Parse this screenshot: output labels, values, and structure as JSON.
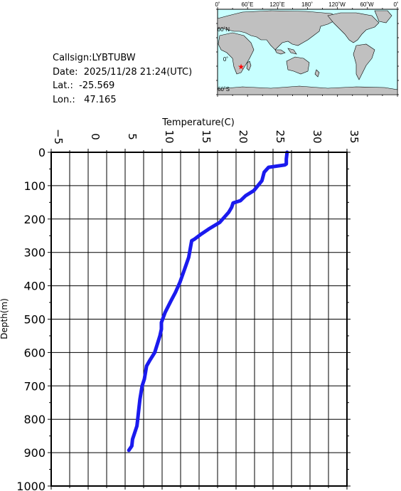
{
  "info": {
    "callsign": "Callsign:LYBTUBW",
    "date": "Date:  2025/11/28 21:24(UTC)",
    "lat": "Lat.:  -25.569",
    "lon": "Lon.:   47.165"
  },
  "map": {
    "lon_labels": [
      "0˚",
      "60˚E",
      "120˚E",
      "180˚",
      "120˚W",
      "60˚W",
      "0˚"
    ],
    "lat_labels": [
      "60˚N",
      "0˚",
      "60˚S"
    ],
    "ocean_color": "#c8ffff",
    "land_color": "#c0c0c0",
    "marker_color": "#ff0000",
    "marker": {
      "lon": 47.165,
      "lat": -25.569
    }
  },
  "chart_data": {
    "type": "line",
    "xlabel": "Temperature(C)",
    "ylabel": "Depth(m)",
    "xlim": [
      -5,
      35
    ],
    "ylim": [
      0,
      1000
    ],
    "y_inverted": true,
    "x_ticks": [
      -5,
      0,
      5,
      10,
      15,
      20,
      25,
      30,
      35
    ],
    "y_ticks": [
      0,
      100,
      200,
      300,
      400,
      500,
      600,
      700,
      800,
      900,
      1000
    ],
    "grid": true,
    "line_color": "#1a1aee",
    "series": [
      {
        "x": [
          26.9,
          26.8,
          26.8,
          26.6,
          24.4,
          23.8,
          23.5,
          22.4,
          21.3,
          20.6,
          19.6,
          19.4,
          19.0,
          17.8,
          16.3,
          15.3,
          14.4,
          14.0,
          13.8,
          13.6,
          13.2,
          12.4,
          11.8,
          11.2,
          10.4,
          9.9,
          9.9,
          9.7,
          9.0,
          8.3,
          7.9,
          7.6,
          7.3,
          7.0,
          6.8,
          6.7,
          6.6,
          6.3,
          6.0,
          5.9,
          5.5
        ],
        "y": [
          0,
          20,
          35,
          38,
          45,
          60,
          85,
          115,
          130,
          145,
          152,
          165,
          180,
          210,
          230,
          245,
          260,
          265,
          290,
          315,
          340,
          390,
          420,
          445,
          480,
          510,
          530,
          550,
          600,
          625,
          640,
          680,
          700,
          740,
          780,
          800,
          820,
          840,
          860,
          880,
          893
        ]
      }
    ]
  }
}
